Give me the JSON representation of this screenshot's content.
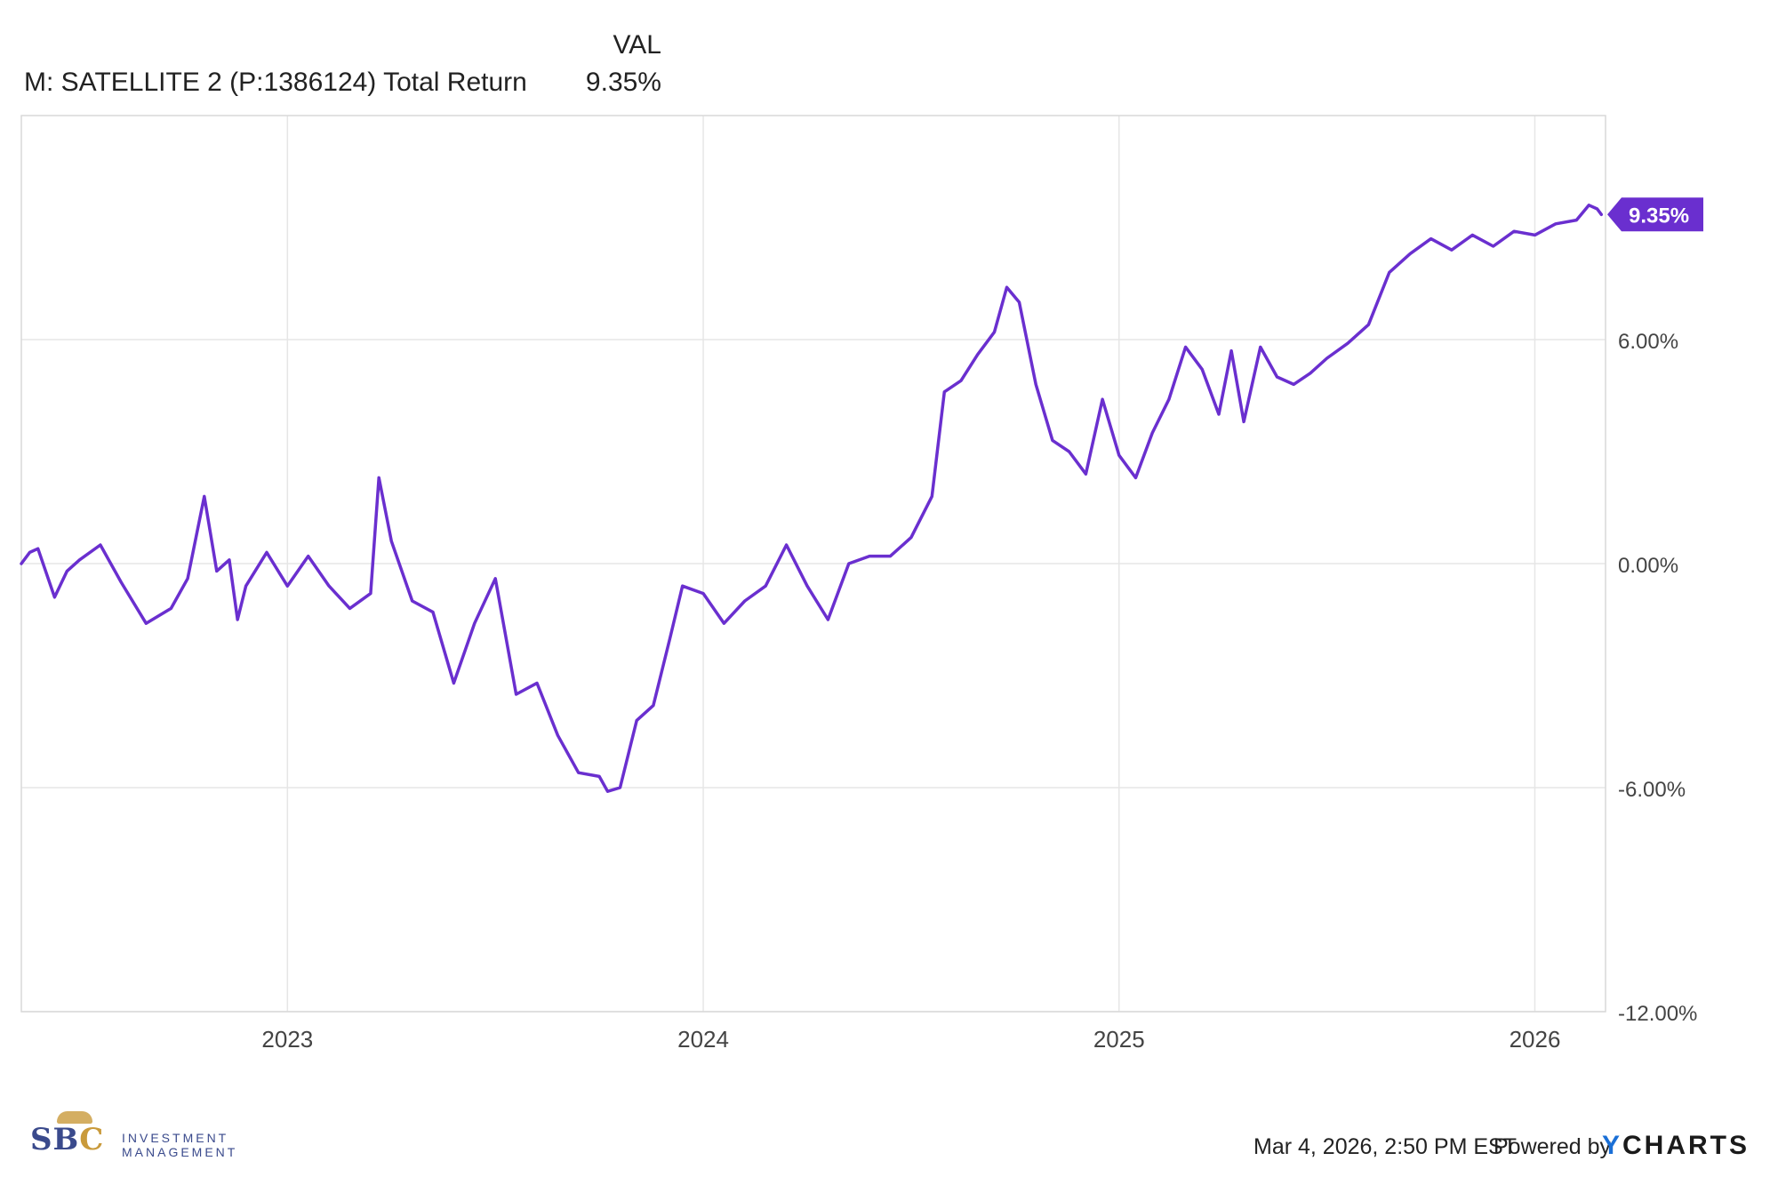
{
  "legend": {
    "column_header": "VAL",
    "series_name": "M: SATELLITE 2 (P:1386124) Total Return",
    "series_value": "9.35%"
  },
  "chart_data": {
    "type": "line",
    "title": "",
    "xlabel": "",
    "ylabel": "",
    "x_range": [
      2022.36,
      2026.17
    ],
    "ylim": [
      -12,
      12
    ],
    "y_tick_values": [
      6,
      0,
      -6,
      -12
    ],
    "y_tick_labels": [
      "6.00%",
      "0.00%",
      "-6.00%",
      "-12.00%"
    ],
    "x_tick_values": [
      2023,
      2024,
      2025,
      2026
    ],
    "x_tick_labels": [
      "2023",
      "2024",
      "2025",
      "2026"
    ],
    "grid": true,
    "color": "#6a2fcf",
    "end_label": "9.35%",
    "series": [
      {
        "name": "M: SATELLITE 2 (P:1386124) Total Return",
        "x": [
          2022.36,
          2022.38,
          2022.4,
          2022.44,
          2022.47,
          2022.5,
          2022.55,
          2022.6,
          2022.66,
          2022.72,
          2022.76,
          2022.8,
          2022.83,
          2022.86,
          2022.88,
          2022.9,
          2022.95,
          2023.0,
          2023.05,
          2023.1,
          2023.15,
          2023.2,
          2023.22,
          2023.25,
          2023.3,
          2023.35,
          2023.4,
          2023.45,
          2023.5,
          2023.55,
          2023.6,
          2023.65,
          2023.7,
          2023.75,
          2023.77,
          2023.8,
          2023.84,
          2023.88,
          2023.92,
          2023.95,
          2024.0,
          2024.05,
          2024.1,
          2024.15,
          2024.2,
          2024.25,
          2024.3,
          2024.35,
          2024.4,
          2024.45,
          2024.5,
          2024.55,
          2024.58,
          2024.62,
          2024.66,
          2024.7,
          2024.73,
          2024.76,
          2024.8,
          2024.84,
          2024.88,
          2024.92,
          2024.96,
          2025.0,
          2025.04,
          2025.08,
          2025.12,
          2025.16,
          2025.2,
          2025.24,
          2025.27,
          2025.3,
          2025.34,
          2025.38,
          2025.42,
          2025.46,
          2025.5,
          2025.55,
          2025.6,
          2025.65,
          2025.7,
          2025.75,
          2025.8,
          2025.85,
          2025.9,
          2025.95,
          2026.0,
          2026.05,
          2026.1,
          2026.13,
          2026.15,
          2026.16
        ],
        "y": [
          0.0,
          0.3,
          0.4,
          -0.9,
          -0.2,
          0.1,
          0.5,
          -0.5,
          -1.6,
          -1.2,
          -0.4,
          1.8,
          -0.2,
          0.1,
          -1.5,
          -0.6,
          0.3,
          -0.6,
          0.2,
          -0.6,
          -1.2,
          -0.8,
          2.3,
          0.6,
          -1.0,
          -1.3,
          -3.2,
          -1.6,
          -0.4,
          -3.5,
          -3.2,
          -4.6,
          -5.6,
          -5.7,
          -6.1,
          -6.0,
          -4.2,
          -3.8,
          -2.0,
          -0.6,
          -0.8,
          -1.6,
          -1.0,
          -0.6,
          0.5,
          -0.6,
          -1.5,
          0.0,
          0.2,
          0.2,
          0.7,
          1.8,
          4.6,
          4.9,
          5.6,
          6.2,
          7.4,
          7.0,
          4.8,
          3.3,
          3.0,
          2.4,
          4.4,
          2.9,
          2.3,
          3.5,
          4.4,
          5.8,
          5.2,
          4.0,
          5.7,
          3.8,
          5.8,
          5.0,
          4.8,
          5.1,
          5.5,
          5.9,
          6.4,
          7.8,
          8.3,
          8.7,
          8.4,
          8.8,
          8.5,
          8.9,
          8.8,
          9.1,
          9.2,
          9.6,
          9.5,
          9.35
        ]
      }
    ]
  },
  "footer": {
    "timestamp": "Mar 4, 2026, 2:50 PM EST",
    "powered_by": "Powered by",
    "brand_y": "Y",
    "brand_rest": "CHARTS"
  },
  "logo": {
    "letters_sb": "SB",
    "letter_c": "C",
    "line1": "INVESTMENT",
    "line2": "MANAGEMENT"
  }
}
